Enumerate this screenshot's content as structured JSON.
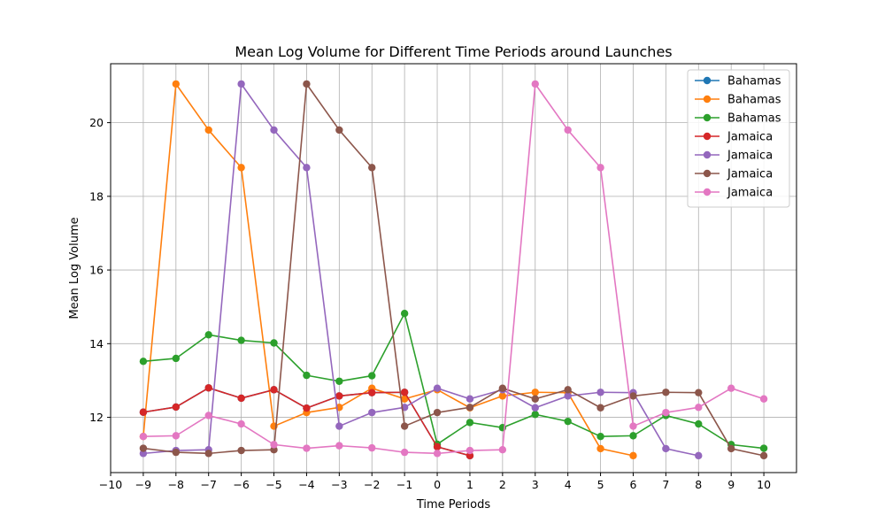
{
  "chart_data": {
    "type": "line",
    "title": "Mean Log Volume for Different Time Periods around Launches",
    "xlabel": "Time Periods",
    "ylabel": "Mean Log Volume",
    "xlim": [
      -10,
      11
    ],
    "ylim": [
      10.5,
      21.6
    ],
    "xticks": [
      -10,
      -9,
      -8,
      -7,
      -6,
      -5,
      -4,
      -3,
      -2,
      -1,
      0,
      1,
      2,
      3,
      4,
      5,
      6,
      7,
      8,
      9,
      10
    ],
    "yticks": [
      12,
      14,
      16,
      18,
      20
    ],
    "grid": true,
    "legend_position": "top-right",
    "series": [
      {
        "name": "Bahamas",
        "color": "#1f77b4",
        "points": [
          [
            -9,
            12.14
          ],
          [
            -8,
            12.28
          ],
          [
            -7,
            12.8
          ],
          [
            -6,
            12.52
          ],
          [
            -5,
            12.75
          ],
          [
            -4,
            12.25
          ],
          [
            -3,
            12.58
          ],
          [
            -2,
            12.67
          ],
          [
            -1,
            12.68
          ],
          [
            0,
            11.2
          ],
          [
            1,
            10.96
          ]
        ]
      },
      {
        "name": "Bahamas",
        "color": "#ff7f0e",
        "points": [
          [
            -9,
            11.48
          ],
          [
            -8,
            21.05
          ],
          [
            -7,
            19.8
          ],
          [
            -6,
            18.78
          ],
          [
            -5,
            11.76
          ],
          [
            -4,
            12.13
          ],
          [
            -3,
            12.27
          ],
          [
            -2,
            12.79
          ],
          [
            -1,
            12.5
          ],
          [
            0,
            12.75
          ],
          [
            1,
            12.26
          ],
          [
            2,
            12.58
          ],
          [
            3,
            12.68
          ],
          [
            4,
            12.67
          ],
          [
            5,
            11.15
          ],
          [
            6,
            10.96
          ]
        ]
      },
      {
        "name": "Bahamas",
        "color": "#2ca02c",
        "points": [
          [
            -9,
            13.52
          ],
          [
            -8,
            13.6
          ],
          [
            -7,
            14.24
          ],
          [
            -6,
            14.09
          ],
          [
            -5,
            14.02
          ],
          [
            -4,
            13.14
          ],
          [
            -3,
            12.98
          ],
          [
            -2,
            13.13
          ],
          [
            -1,
            14.82
          ],
          [
            0,
            11.27
          ],
          [
            1,
            11.86
          ],
          [
            2,
            11.72
          ],
          [
            3,
            12.08
          ],
          [
            4,
            11.89
          ],
          [
            5,
            11.48
          ],
          [
            6,
            11.5
          ],
          [
            7,
            12.05
          ],
          [
            8,
            11.82
          ],
          [
            9,
            11.26
          ],
          [
            10,
            11.16
          ]
        ]
      },
      {
        "name": "Jamaica",
        "color": "#d62728",
        "points": [
          [
            -9,
            12.14
          ],
          [
            -8,
            12.28
          ],
          [
            -7,
            12.8
          ],
          [
            -6,
            12.52
          ],
          [
            -5,
            12.75
          ],
          [
            -4,
            12.25
          ],
          [
            -3,
            12.58
          ],
          [
            -2,
            12.67
          ],
          [
            -1,
            12.68
          ],
          [
            0,
            11.2
          ],
          [
            1,
            10.96
          ]
        ]
      },
      {
        "name": "Jamaica",
        "color": "#9467bd",
        "points": [
          [
            -9,
            11.02
          ],
          [
            -8,
            11.1
          ],
          [
            -7,
            11.12
          ],
          [
            -6,
            21.05
          ],
          [
            -5,
            19.8
          ],
          [
            -4,
            18.78
          ],
          [
            -3,
            11.76
          ],
          [
            -2,
            12.13
          ],
          [
            -1,
            12.27
          ],
          [
            0,
            12.79
          ],
          [
            1,
            12.5
          ],
          [
            2,
            12.75
          ],
          [
            3,
            12.26
          ],
          [
            4,
            12.58
          ],
          [
            5,
            12.68
          ],
          [
            6,
            12.67
          ],
          [
            7,
            11.15
          ],
          [
            8,
            10.96
          ]
        ]
      },
      {
        "name": "Jamaica",
        "color": "#8c564b",
        "points": [
          [
            -9,
            11.16
          ],
          [
            -8,
            11.05
          ],
          [
            -7,
            11.02
          ],
          [
            -6,
            11.1
          ],
          [
            -5,
            11.12
          ],
          [
            -4,
            21.05
          ],
          [
            -3,
            19.8
          ],
          [
            -2,
            18.78
          ],
          [
            -1,
            11.76
          ],
          [
            0,
            12.13
          ],
          [
            1,
            12.27
          ],
          [
            2,
            12.79
          ],
          [
            3,
            12.5
          ],
          [
            4,
            12.75
          ],
          [
            5,
            12.26
          ],
          [
            6,
            12.58
          ],
          [
            7,
            12.68
          ],
          [
            8,
            12.67
          ],
          [
            9,
            11.15
          ],
          [
            10,
            10.96
          ]
        ]
      },
      {
        "name": "Jamaica",
        "color": "#e377c2",
        "points": [
          [
            -9,
            11.48
          ],
          [
            -8,
            11.5
          ],
          [
            -7,
            12.05
          ],
          [
            -6,
            11.82
          ],
          [
            -5,
            11.26
          ],
          [
            -4,
            11.16
          ],
          [
            -3,
            11.23
          ],
          [
            -2,
            11.17
          ],
          [
            -1,
            11.05
          ],
          [
            0,
            11.02
          ],
          [
            1,
            11.1
          ],
          [
            2,
            11.12
          ],
          [
            3,
            21.05
          ],
          [
            4,
            19.8
          ],
          [
            5,
            18.78
          ],
          [
            6,
            11.76
          ],
          [
            7,
            12.13
          ],
          [
            8,
            12.27
          ],
          [
            9,
            12.79
          ],
          [
            10,
            12.5
          ]
        ]
      }
    ]
  }
}
